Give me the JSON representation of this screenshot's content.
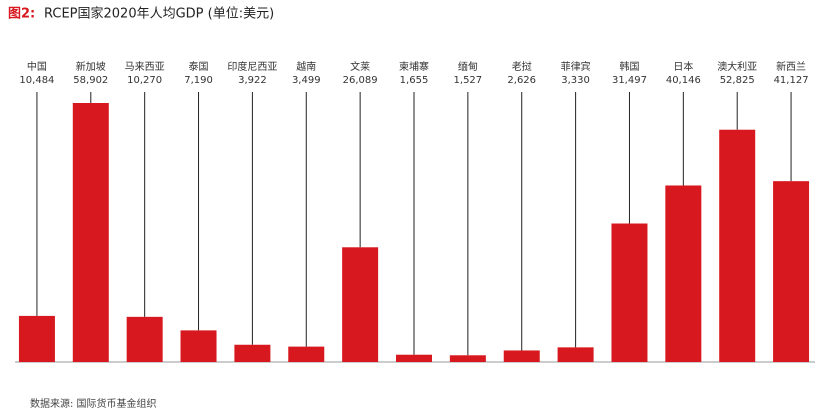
{
  "chart_data": {
    "type": "bar",
    "figure_label": "图2:",
    "title": "RCEP国家2020年人均GDP (单位:美元)",
    "categories": [
      "中国",
      "新加坡",
      "马来西亚",
      "泰国",
      "印度尼西亚",
      "越南",
      "文莱",
      "柬埔寨",
      "缅甸",
      "老挝",
      "菲律宾",
      "韩国",
      "日本",
      "澳大利亚",
      "新西兰"
    ],
    "values": [
      10484,
      58902,
      10270,
      7190,
      3922,
      3499,
      26089,
      1655,
      1527,
      2626,
      3330,
      31497,
      40146,
      52825,
      41127
    ],
    "value_labels": [
      "10,484",
      "58,902",
      "10,270",
      "7,190",
      "3,922",
      "3,499",
      "26,089",
      "1,655",
      "1,527",
      "2,626",
      "3,330",
      "31,497",
      "40,146",
      "52,825",
      "41,127"
    ],
    "color": "#d7191f",
    "source": "数据来源: 国际货币基金组织"
  }
}
